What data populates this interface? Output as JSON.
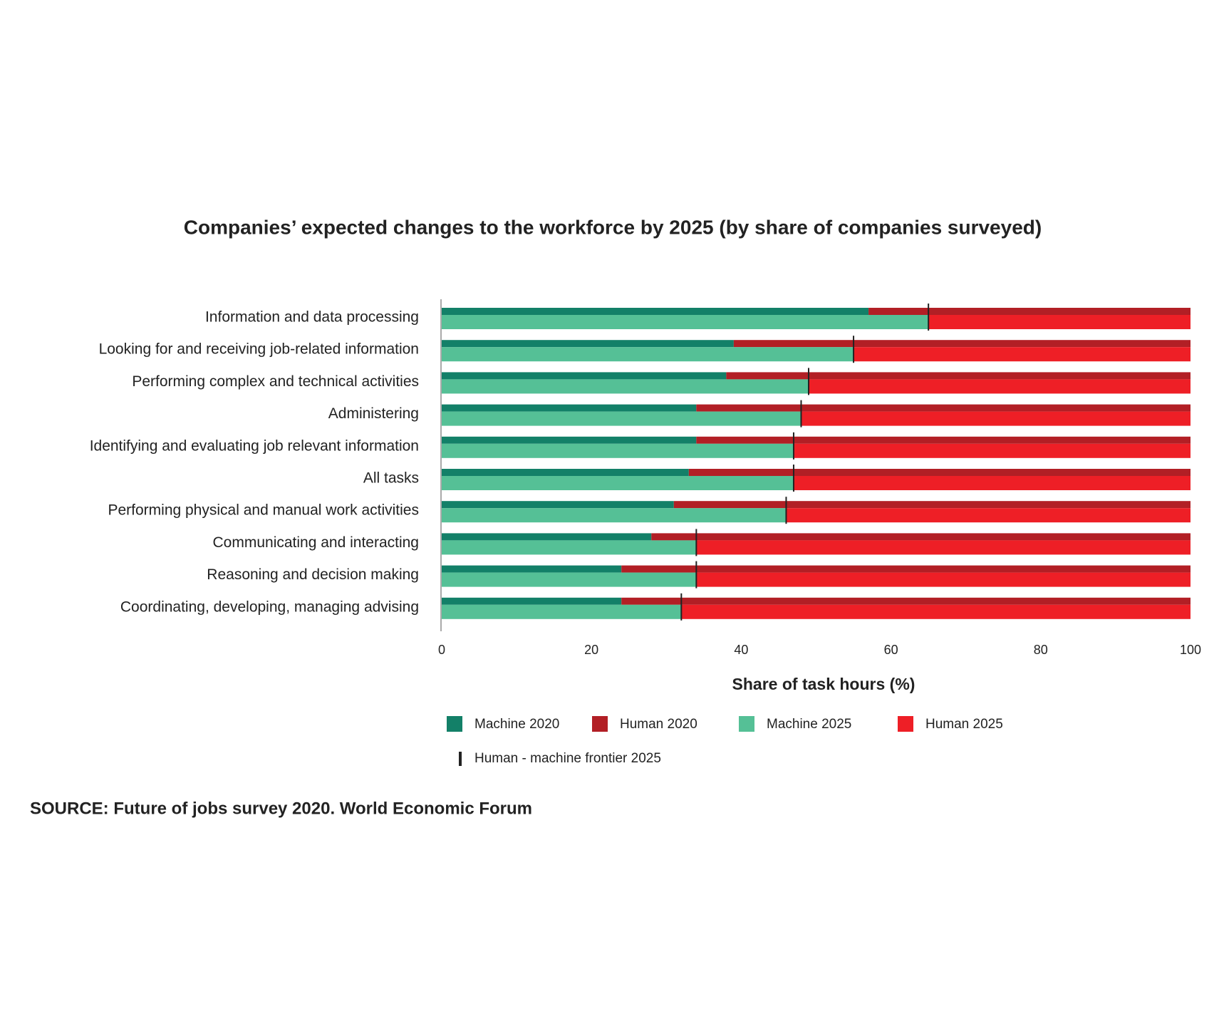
{
  "chart_data": {
    "type": "bar",
    "orientation": "horizontal",
    "title": "Companies’ expected changes to the workforce by 2025 (by share of companies surveyed)",
    "categories": [
      "Information and data processing",
      "Looking for and receiving job-related information",
      "Performing complex and technical activities",
      "Administering",
      "Identifying and evaluating job relevant information",
      "All tasks",
      "Performing physical and manual work activities",
      "Communicating and interacting",
      "Reasoning and decision making",
      "Coordinating, developing, managing advising"
    ],
    "series": [
      {
        "name": "Machine 2020",
        "color": "#138068",
        "values": [
          57,
          39,
          38,
          34,
          34,
          33,
          31,
          28,
          24,
          24
        ]
      },
      {
        "name": "Human 2020",
        "color": "#b21f25",
        "values": [
          43,
          61,
          62,
          66,
          66,
          67,
          69,
          72,
          76,
          76
        ]
      },
      {
        "name": "Machine 2025",
        "color": "#55c096",
        "values": [
          65,
          55,
          49,
          48,
          47,
          47,
          46,
          34,
          34,
          32
        ]
      },
      {
        "name": "Human 2025",
        "color": "#ee1f26",
        "values": [
          35,
          45,
          51,
          52,
          53,
          53,
          54,
          66,
          66,
          68
        ]
      }
    ],
    "frontier_label": "Human - machine frontier 2025",
    "x_label": "Share of task hours (%)",
    "xlim": [
      0,
      100
    ],
    "xticks": [
      0,
      20,
      40,
      60,
      80,
      100
    ],
    "source": "SOURCE: Future of jobs survey 2020. World Economic Forum"
  }
}
